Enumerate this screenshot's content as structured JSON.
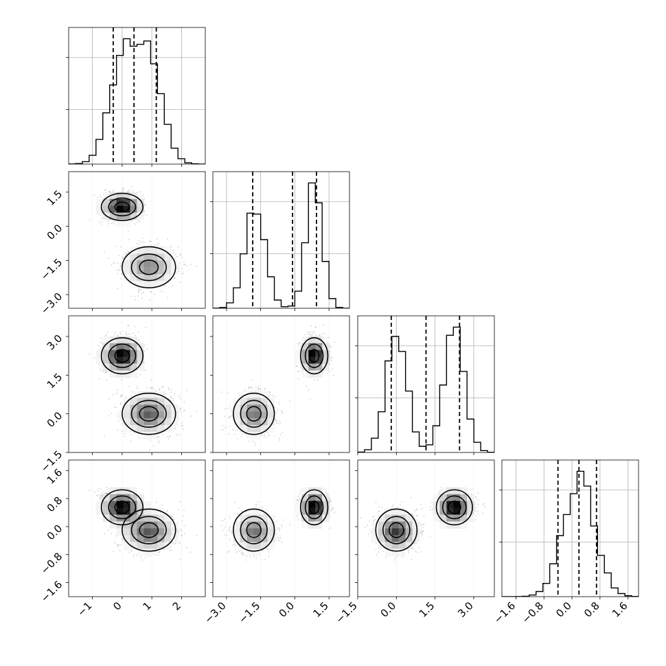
{
  "chart_data": {
    "type": "corner",
    "title": "",
    "grid": true,
    "colors": {
      "hist_line": "#000000",
      "quantile_line": "#000000",
      "scatter": "#7f7f7f",
      "density_dark": "#000000",
      "contour": "#000000",
      "grid": "#b0b0b0"
    },
    "parameters": [
      {
        "index": 0,
        "range": [
          -1.8,
          2.8
        ],
        "ticks": [
          -1,
          0,
          1,
          2
        ],
        "tick_labels": [
          "−1",
          "0",
          "1",
          "2"
        ],
        "quantiles": [
          -0.3,
          0.4,
          1.15
        ],
        "modes": [
          {
            "mean": 0.0,
            "sd": 0.45,
            "weight": 0.5
          },
          {
            "mean": 0.9,
            "sd": 0.45,
            "weight": 0.5
          }
        ]
      },
      {
        "index": 1,
        "range": [
          -3.6,
          2.4
        ],
        "ticks": [
          -3.0,
          -1.5,
          0.0,
          1.5
        ],
        "tick_labels": [
          "−3.0",
          "−1.5",
          "0.0",
          "1.5"
        ],
        "quantiles": [
          -1.85,
          -0.1,
          0.95
        ],
        "modes": [
          {
            "mean": -1.75,
            "sd": 0.45,
            "weight": 0.5
          },
          {
            "mean": 0.85,
            "sd": 0.35,
            "weight": 0.5
          }
        ]
      },
      {
        "index": 2,
        "range": [
          -1.5,
          3.8
        ],
        "ticks": [
          -1.5,
          0.0,
          1.5,
          3.0
        ],
        "tick_labels": [
          "−1.5",
          "0.0",
          "1.5",
          "3.0"
        ],
        "quantiles": [
          -0.2,
          1.15,
          2.45
        ],
        "modes": [
          {
            "mean": 0.0,
            "sd": 0.4,
            "weight": 0.5
          },
          {
            "mean": 2.25,
            "sd": 0.4,
            "weight": 0.5
          }
        ]
      },
      {
        "index": 3,
        "range": [
          -2.0,
          1.9
        ],
        "ticks": [
          -1.6,
          -0.8,
          0.0,
          0.8,
          1.6
        ],
        "tick_labels": [
          "−1.6",
          "−0.8",
          "0.0",
          "0.8",
          "1.6"
        ],
        "quantiles": [
          -0.4,
          0.2,
          0.7
        ],
        "modes": [
          {
            "mean": 0.2,
            "sd": 0.45,
            "weight": 1.0
          }
        ]
      }
    ],
    "y_tick_labels": {
      "1": [
        "−3.0",
        "−1.5",
        "0.0",
        "1.5"
      ],
      "2": [
        "−1.5",
        "0.0",
        "1.5",
        "3.0"
      ],
      "3": [
        "−1.6",
        "−0.8",
        "0.0",
        "0.8",
        "1.6"
      ]
    },
    "joint_clusters": [
      {
        "weight": 0.5,
        "mean": [
          0.0,
          0.85,
          2.25,
          0.55
        ],
        "sd": [
          0.35,
          0.3,
          0.35,
          0.25
        ]
      },
      {
        "weight": 0.3,
        "mean": [
          0.9,
          -1.8,
          0.0,
          -0.1
        ],
        "sd": [
          0.45,
          0.45,
          0.4,
          0.3
        ]
      },
      {
        "weight": 0.2,
        "mean": [
          0.9,
          -1.7,
          0.0,
          -0.2
        ],
        "sd": [
          0.45,
          0.45,
          0.4,
          0.25
        ]
      }
    ],
    "hist_bins": 20,
    "scatter_points_per_panel": 1800,
    "contour_levels": 3,
    "density_pixels": 20
  }
}
